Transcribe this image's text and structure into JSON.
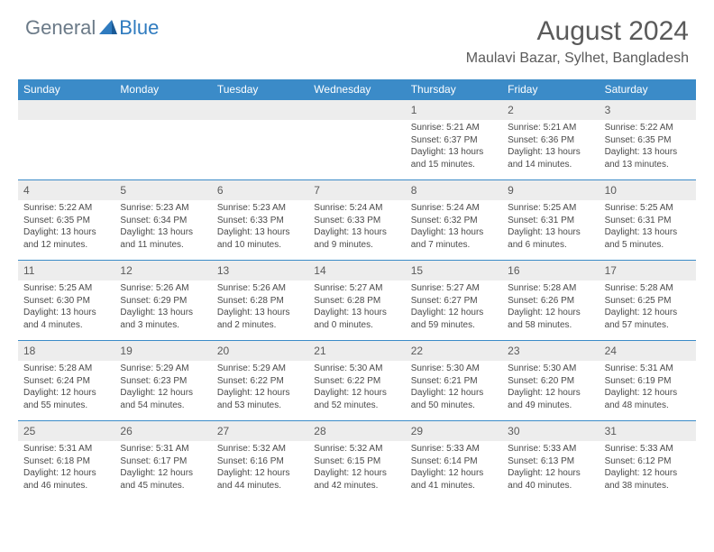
{
  "logo": {
    "general": "General",
    "blue": "Blue"
  },
  "title": "August 2024",
  "location": "Maulavi Bazar, Sylhet, Bangladesh",
  "colors": {
    "header_bar": "#3b8bc8",
    "daynum_bg": "#ededed",
    "text_muted": "#5a5a5a",
    "body_text": "#4a4a4a",
    "logo_general": "#6b7a88",
    "logo_blue": "#2f7bbf"
  },
  "weekdays": [
    "Sunday",
    "Monday",
    "Tuesday",
    "Wednesday",
    "Thursday",
    "Friday",
    "Saturday"
  ],
  "weeks": [
    [
      null,
      null,
      null,
      null,
      {
        "n": "1",
        "sr": "5:21 AM",
        "ss": "6:37 PM",
        "dl": "Daylight: 13 hours and 15 minutes."
      },
      {
        "n": "2",
        "sr": "5:21 AM",
        "ss": "6:36 PM",
        "dl": "Daylight: 13 hours and 14 minutes."
      },
      {
        "n": "3",
        "sr": "5:22 AM",
        "ss": "6:35 PM",
        "dl": "Daylight: 13 hours and 13 minutes."
      }
    ],
    [
      {
        "n": "4",
        "sr": "5:22 AM",
        "ss": "6:35 PM",
        "dl": "Daylight: 13 hours and 12 minutes."
      },
      {
        "n": "5",
        "sr": "5:23 AM",
        "ss": "6:34 PM",
        "dl": "Daylight: 13 hours and 11 minutes."
      },
      {
        "n": "6",
        "sr": "5:23 AM",
        "ss": "6:33 PM",
        "dl": "Daylight: 13 hours and 10 minutes."
      },
      {
        "n": "7",
        "sr": "5:24 AM",
        "ss": "6:33 PM",
        "dl": "Daylight: 13 hours and 9 minutes."
      },
      {
        "n": "8",
        "sr": "5:24 AM",
        "ss": "6:32 PM",
        "dl": "Daylight: 13 hours and 7 minutes."
      },
      {
        "n": "9",
        "sr": "5:25 AM",
        "ss": "6:31 PM",
        "dl": "Daylight: 13 hours and 6 minutes."
      },
      {
        "n": "10",
        "sr": "5:25 AM",
        "ss": "6:31 PM",
        "dl": "Daylight: 13 hours and 5 minutes."
      }
    ],
    [
      {
        "n": "11",
        "sr": "5:25 AM",
        "ss": "6:30 PM",
        "dl": "Daylight: 13 hours and 4 minutes."
      },
      {
        "n": "12",
        "sr": "5:26 AM",
        "ss": "6:29 PM",
        "dl": "Daylight: 13 hours and 3 minutes."
      },
      {
        "n": "13",
        "sr": "5:26 AM",
        "ss": "6:28 PM",
        "dl": "Daylight: 13 hours and 2 minutes."
      },
      {
        "n": "14",
        "sr": "5:27 AM",
        "ss": "6:28 PM",
        "dl": "Daylight: 13 hours and 0 minutes."
      },
      {
        "n": "15",
        "sr": "5:27 AM",
        "ss": "6:27 PM",
        "dl": "Daylight: 12 hours and 59 minutes."
      },
      {
        "n": "16",
        "sr": "5:28 AM",
        "ss": "6:26 PM",
        "dl": "Daylight: 12 hours and 58 minutes."
      },
      {
        "n": "17",
        "sr": "5:28 AM",
        "ss": "6:25 PM",
        "dl": "Daylight: 12 hours and 57 minutes."
      }
    ],
    [
      {
        "n": "18",
        "sr": "5:28 AM",
        "ss": "6:24 PM",
        "dl": "Daylight: 12 hours and 55 minutes."
      },
      {
        "n": "19",
        "sr": "5:29 AM",
        "ss": "6:23 PM",
        "dl": "Daylight: 12 hours and 54 minutes."
      },
      {
        "n": "20",
        "sr": "5:29 AM",
        "ss": "6:22 PM",
        "dl": "Daylight: 12 hours and 53 minutes."
      },
      {
        "n": "21",
        "sr": "5:30 AM",
        "ss": "6:22 PM",
        "dl": "Daylight: 12 hours and 52 minutes."
      },
      {
        "n": "22",
        "sr": "5:30 AM",
        "ss": "6:21 PM",
        "dl": "Daylight: 12 hours and 50 minutes."
      },
      {
        "n": "23",
        "sr": "5:30 AM",
        "ss": "6:20 PM",
        "dl": "Daylight: 12 hours and 49 minutes."
      },
      {
        "n": "24",
        "sr": "5:31 AM",
        "ss": "6:19 PM",
        "dl": "Daylight: 12 hours and 48 minutes."
      }
    ],
    [
      {
        "n": "25",
        "sr": "5:31 AM",
        "ss": "6:18 PM",
        "dl": "Daylight: 12 hours and 46 minutes."
      },
      {
        "n": "26",
        "sr": "5:31 AM",
        "ss": "6:17 PM",
        "dl": "Daylight: 12 hours and 45 minutes."
      },
      {
        "n": "27",
        "sr": "5:32 AM",
        "ss": "6:16 PM",
        "dl": "Daylight: 12 hours and 44 minutes."
      },
      {
        "n": "28",
        "sr": "5:32 AM",
        "ss": "6:15 PM",
        "dl": "Daylight: 12 hours and 42 minutes."
      },
      {
        "n": "29",
        "sr": "5:33 AM",
        "ss": "6:14 PM",
        "dl": "Daylight: 12 hours and 41 minutes."
      },
      {
        "n": "30",
        "sr": "5:33 AM",
        "ss": "6:13 PM",
        "dl": "Daylight: 12 hours and 40 minutes."
      },
      {
        "n": "31",
        "sr": "5:33 AM",
        "ss": "6:12 PM",
        "dl": "Daylight: 12 hours and 38 minutes."
      }
    ]
  ],
  "labels": {
    "sunrise_prefix": "Sunrise: ",
    "sunset_prefix": "Sunset: "
  }
}
